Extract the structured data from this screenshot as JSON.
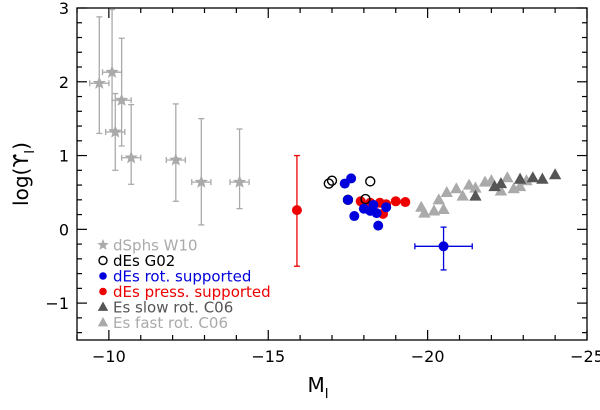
{
  "chart_data": {
    "type": "scatter",
    "xlabel": "M",
    "xlabel_sub": "I",
    "ylabel": "log(ϒ",
    "ylabel_sub": "I",
    "ylabel_close": ")",
    "xlim": [
      -9,
      -25
    ],
    "ylim": [
      -1.5,
      3
    ],
    "x_ticks": [
      -10,
      -15,
      -20,
      -25
    ],
    "x_tick_labels": [
      "−10",
      "−15",
      "−20",
      "−25"
    ],
    "y_ticks": [
      -1,
      0,
      1,
      2,
      3
    ],
    "y_tick_labels": [
      "−1",
      "0",
      "1",
      "2",
      "3"
    ],
    "legend_position": "bottom-left",
    "colors": {
      "dsph": "#aaaaaa",
      "g02": "#000000",
      "rot": "#0000dd",
      "press": "#ee0000",
      "slow": "#555555",
      "fast": "#aaaaaa"
    },
    "series": [
      {
        "name": "dSphs W10",
        "key": "dsph",
        "marker": "star",
        "points": [
          {
            "x": -9.7,
            "y": 1.98,
            "xerr": 0.3,
            "yerr_lo": 0.68,
            "yerr_hi": 0.9
          },
          {
            "x": -10.1,
            "y": 2.13,
            "xerr": 0.3,
            "yerr_lo": 0.78,
            "yerr_hi": 0.85
          },
          {
            "x": -10.2,
            "y": 1.32,
            "xerr": 0.3,
            "yerr_lo": 0.52,
            "yerr_hi": 0.52
          },
          {
            "x": -10.4,
            "y": 1.75,
            "xerr": 0.3,
            "yerr_lo": 0.62,
            "yerr_hi": 0.84
          },
          {
            "x": -10.7,
            "y": 0.97,
            "xerr": 0.3,
            "yerr_lo": 0.36,
            "yerr_hi": 0.72
          },
          {
            "x": -12.1,
            "y": 0.94,
            "xerr": 0.3,
            "yerr_lo": 0.56,
            "yerr_hi": 0.76
          },
          {
            "x": -12.9,
            "y": 0.64,
            "xerr": 0.3,
            "yerr_lo": 0.58,
            "yerr_hi": 0.86
          },
          {
            "x": -14.1,
            "y": 0.64,
            "xerr": 0.3,
            "yerr_lo": 0.36,
            "yerr_hi": 0.72
          }
        ]
      },
      {
        "name": "dEs G02",
        "key": "g02",
        "marker": "open-circle",
        "points": [
          {
            "x": -16.9,
            "y": 0.62
          },
          {
            "x": -17.0,
            "y": 0.66
          },
          {
            "x": -17.5,
            "y": 0.4
          },
          {
            "x": -18.2,
            "y": 0.65
          },
          {
            "x": -18.05,
            "y": 0.41
          }
        ]
      },
      {
        "name": "dEs rot. supported",
        "key": "rot",
        "marker": "filled-circle",
        "points": [
          {
            "x": -17.4,
            "y": 0.62
          },
          {
            "x": -17.6,
            "y": 0.69
          },
          {
            "x": -17.5,
            "y": 0.4
          },
          {
            "x": -17.7,
            "y": 0.18
          },
          {
            "x": -18.0,
            "y": 0.28
          },
          {
            "x": -18.2,
            "y": 0.25
          },
          {
            "x": -18.3,
            "y": 0.33
          },
          {
            "x": -18.4,
            "y": 0.22
          },
          {
            "x": -18.45,
            "y": 0.05
          },
          {
            "x": -18.7,
            "y": 0.3
          },
          {
            "x": -20.5,
            "y": -0.23,
            "xerr": 0.9,
            "yerr_lo": 0.32,
            "yerr_hi": 0.26
          }
        ]
      },
      {
        "name": "dEs press. supported",
        "key": "press",
        "marker": "filled-circle",
        "points": [
          {
            "x": -15.9,
            "y": 0.26,
            "yerr_lo": 0.76,
            "yerr_hi": 0.74
          },
          {
            "x": -17.9,
            "y": 0.38
          },
          {
            "x": -18.2,
            "y": 0.36
          },
          {
            "x": -18.5,
            "y": 0.36
          },
          {
            "x": -18.7,
            "y": 0.34
          },
          {
            "x": -19.0,
            "y": 0.38
          },
          {
            "x": -19.3,
            "y": 0.37
          },
          {
            "x": -18.6,
            "y": 0.21
          }
        ]
      },
      {
        "name": "Es slow rot. C06",
        "key": "slow",
        "marker": "triangle",
        "points": [
          {
            "x": -21.5,
            "y": 0.45
          },
          {
            "x": -22.1,
            "y": 0.58
          },
          {
            "x": -22.3,
            "y": 0.62
          },
          {
            "x": -22.9,
            "y": 0.68
          },
          {
            "x": -23.3,
            "y": 0.7
          },
          {
            "x": -23.6,
            "y": 0.68
          },
          {
            "x": -24.0,
            "y": 0.74
          }
        ]
      },
      {
        "name": "Es fast rot. C06",
        "key": "fast",
        "marker": "triangle",
        "points": [
          {
            "x": -19.8,
            "y": 0.3
          },
          {
            "x": -19.9,
            "y": 0.22
          },
          {
            "x": -20.2,
            "y": 0.25
          },
          {
            "x": -20.35,
            "y": 0.4
          },
          {
            "x": -20.5,
            "y": 0.27
          },
          {
            "x": -20.6,
            "y": 0.5
          },
          {
            "x": -20.9,
            "y": 0.55
          },
          {
            "x": -21.1,
            "y": 0.45
          },
          {
            "x": -21.3,
            "y": 0.6
          },
          {
            "x": -21.5,
            "y": 0.56
          },
          {
            "x": -21.8,
            "y": 0.64
          },
          {
            "x": -22.0,
            "y": 0.66
          },
          {
            "x": -22.3,
            "y": 0.52
          },
          {
            "x": -22.5,
            "y": 0.7
          },
          {
            "x": -22.7,
            "y": 0.55
          },
          {
            "x": -22.9,
            "y": 0.58
          },
          {
            "x": -23.1,
            "y": 0.66
          }
        ]
      }
    ]
  }
}
